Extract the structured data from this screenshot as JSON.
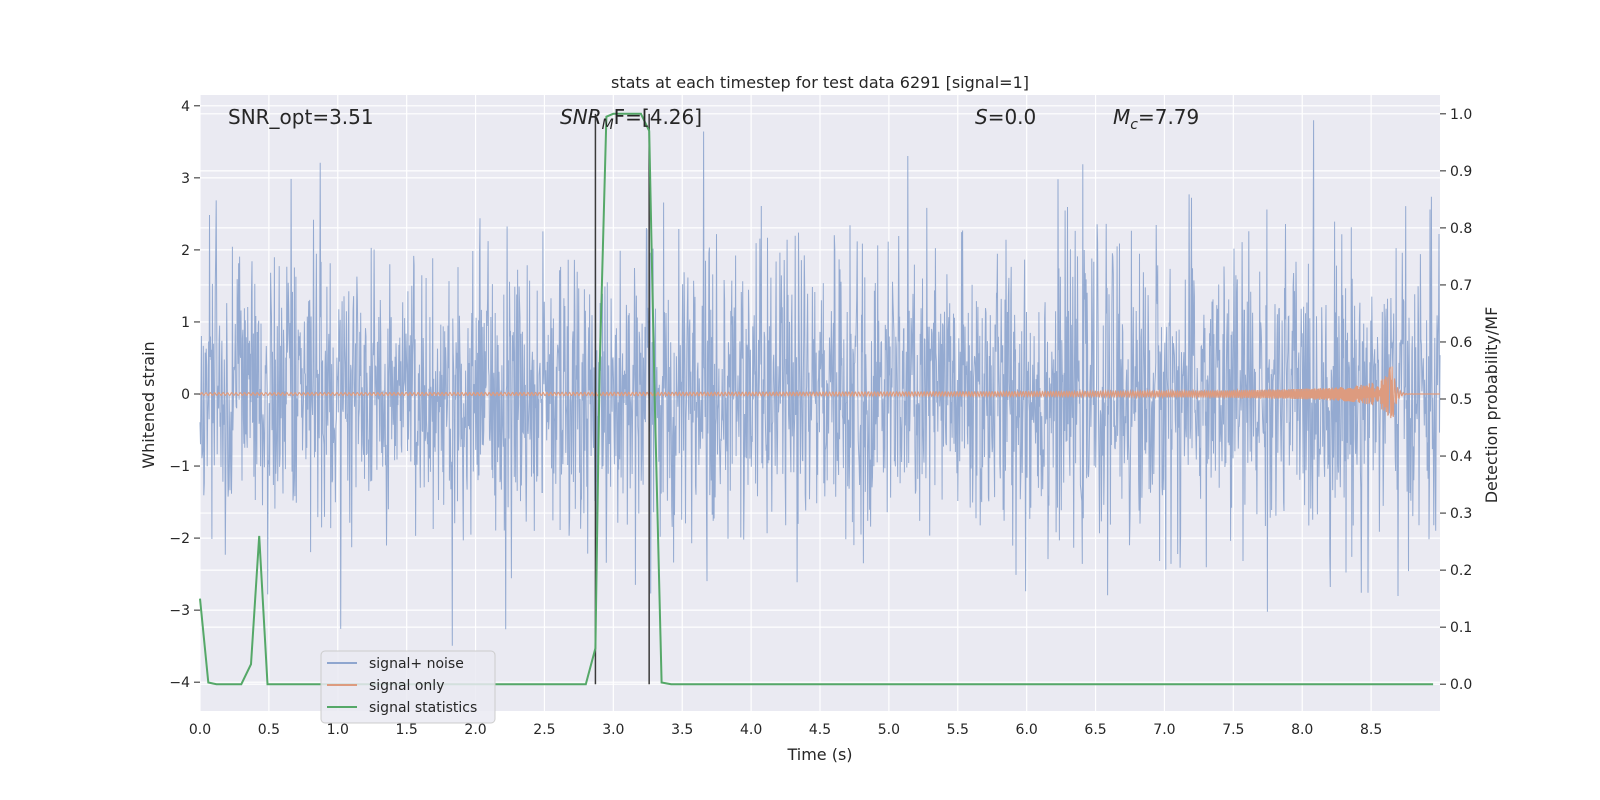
{
  "chart_data": {
    "type": "line",
    "title": "stats at each timestep for test data 6291 [signal=1]",
    "xlabel": "Time (s)",
    "ylabel_left": "Whitened strain",
    "ylabel_right": "Detection probability/MF",
    "xlim": [
      0,
      9.0
    ],
    "ylim_left": [
      -4.4,
      4.15
    ],
    "ylim_right": [
      -0.047,
      1.033
    ],
    "grid": true,
    "legend_position": "lower-left",
    "x_ticks": [
      "0.0",
      "0.5",
      "1.0",
      "1.5",
      "2.0",
      "2.5",
      "3.0",
      "3.5",
      "4.0",
      "4.5",
      "5.0",
      "5.5",
      "6.0",
      "6.5",
      "7.0",
      "7.5",
      "8.0",
      "8.5"
    ],
    "y_ticks_left": [
      "4",
      "3",
      "2",
      "1",
      "0",
      "−1",
      "−2",
      "−3",
      "−4"
    ],
    "y_ticks_right": [
      "1.0",
      "0.9",
      "0.8",
      "0.7",
      "0.6",
      "0.5",
      "0.4",
      "0.3",
      "0.2",
      "0.1",
      "0.0"
    ],
    "annotations": {
      "snr_opt": "SNR_opt=3.51",
      "snr_mf_main": "SNR",
      "snr_mf_sub": "M",
      "snr_mf_tail": "F=[4.26]",
      "s_var": "S",
      "s_val": "=0.0",
      "mc_var": "M",
      "mc_sub": "c",
      "mc_val": "=7.79"
    },
    "vlines_x": [
      2.87,
      3.26
    ],
    "series": [
      {
        "name": "signal+ noise",
        "color": "#8fa6cf",
        "axis": "left",
        "description_values": "white-noise strain, sample amplitudes roughly between -4.0 and 3.8"
      },
      {
        "name": "signal only",
        "color": "#dd9b7f",
        "axis": "left",
        "merger_time": 8.65,
        "peak_amplitude": 0.5
      },
      {
        "name": "signal statistics",
        "color": "#55a868",
        "axis": "right",
        "x": [
          0.0,
          0.06,
          0.12,
          0.2,
          0.3,
          0.37,
          0.43,
          0.49,
          0.55,
          1.0,
          2.0,
          2.5,
          2.8,
          2.87,
          2.9,
          2.95,
          3.0,
          3.1,
          3.2,
          3.26,
          3.3,
          3.35,
          3.42,
          4.0,
          5.0,
          6.0,
          7.0,
          8.0,
          8.95
        ],
        "y": [
          0.15,
          0.003,
          0.0,
          0.0,
          0.0,
          0.035,
          0.26,
          0.0,
          0.0,
          0.0,
          0.0,
          0.0,
          0.0,
          0.063,
          0.55,
          0.995,
          1.0,
          1.0,
          1.0,
          0.97,
          0.5,
          0.003,
          0.0,
          0.0,
          0.0,
          0.0,
          0.0,
          0.0,
          0.0
        ]
      }
    ]
  }
}
